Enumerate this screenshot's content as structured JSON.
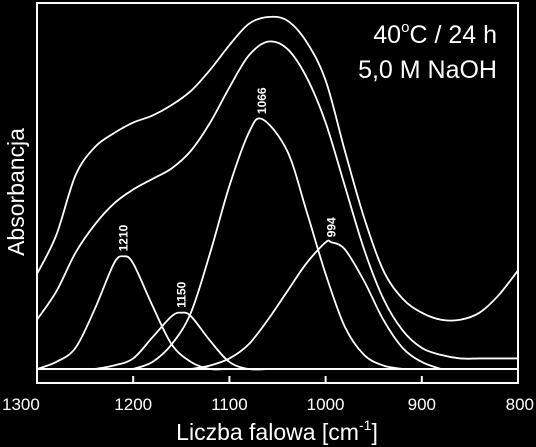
{
  "chart_data": {
    "type": "line",
    "xlabel_main": "Liczba falowa [cm",
    "xlabel_sup": "-1",
    "xlabel_close": "]",
    "ylabel": "Absorbancja",
    "xlim": [
      1300,
      800
    ],
    "x_reversed": true,
    "ylim": [
      0,
      1
    ],
    "x_ticks": [
      1300,
      1200,
      1100,
      1000,
      900,
      800
    ],
    "y_ticks_shown": false,
    "grid": false,
    "annotation": {
      "line1_prefix": "40",
      "line1_sup": "o",
      "line1_suffix": "C / 24 h",
      "line2": "5,0 M NaOH"
    },
    "series": [
      {
        "x": [
          1300,
          1280,
          1260,
          1240,
          1220,
          1200,
          1180,
          1160,
          1140,
          1120,
          1100,
          1080,
          1060,
          1040,
          1020,
          1000,
          980,
          960,
          940,
          920,
          900,
          880,
          860,
          840,
          820,
          800
        ],
        "y": [
          0.27,
          0.38,
          0.55,
          0.63,
          0.67,
          0.7,
          0.72,
          0.75,
          0.79,
          0.85,
          0.92,
          0.98,
          1.0,
          0.99,
          0.93,
          0.82,
          0.62,
          0.43,
          0.28,
          0.2,
          0.16,
          0.14,
          0.14,
          0.16,
          0.21,
          0.28
        ]
      },
      {
        "x": [
          1300,
          1280,
          1260,
          1240,
          1220,
          1200,
          1180,
          1160,
          1140,
          1120,
          1100,
          1080,
          1060,
          1040,
          1020,
          1000,
          980,
          960,
          940,
          920,
          900,
          880,
          860,
          840,
          820,
          800
        ],
        "y": [
          0.14,
          0.22,
          0.33,
          0.41,
          0.47,
          0.51,
          0.54,
          0.57,
          0.62,
          0.7,
          0.8,
          0.89,
          0.93,
          0.91,
          0.83,
          0.7,
          0.52,
          0.34,
          0.2,
          0.11,
          0.06,
          0.04,
          0.03,
          0.03,
          0.03,
          0.03
        ]
      },
      {
        "peak_label": "1210",
        "x": [
          1300,
          1280,
          1260,
          1240,
          1220,
          1210,
          1200,
          1180,
          1160,
          1140,
          1120,
          1100,
          1080
        ],
        "y": [
          0.0,
          0.02,
          0.06,
          0.17,
          0.3,
          0.32,
          0.3,
          0.18,
          0.07,
          0.02,
          0.0,
          0.0,
          0.0
        ]
      },
      {
        "peak_label": "1150",
        "x": [
          1240,
          1220,
          1200,
          1180,
          1160,
          1150,
          1140,
          1120,
          1100,
          1080,
          1060
        ],
        "y": [
          0.0,
          0.01,
          0.03,
          0.09,
          0.15,
          0.16,
          0.15,
          0.08,
          0.02,
          0.0,
          0.0
        ]
      },
      {
        "peak_label": "1066",
        "x": [
          1200,
          1180,
          1160,
          1140,
          1120,
          1100,
          1080,
          1066,
          1040,
          1020,
          1000,
          980,
          960,
          940,
          920
        ],
        "y": [
          0.0,
          0.02,
          0.07,
          0.16,
          0.33,
          0.52,
          0.67,
          0.71,
          0.62,
          0.45,
          0.27,
          0.12,
          0.04,
          0.01,
          0.0
        ]
      },
      {
        "peak_label": "994",
        "x": [
          1140,
          1120,
          1100,
          1080,
          1060,
          1040,
          1020,
          1000,
          994,
          980,
          960,
          940,
          920,
          900,
          880
        ],
        "y": [
          0.0,
          0.01,
          0.03,
          0.07,
          0.14,
          0.22,
          0.3,
          0.36,
          0.36,
          0.34,
          0.25,
          0.14,
          0.06,
          0.02,
          0.0
        ]
      }
    ]
  }
}
